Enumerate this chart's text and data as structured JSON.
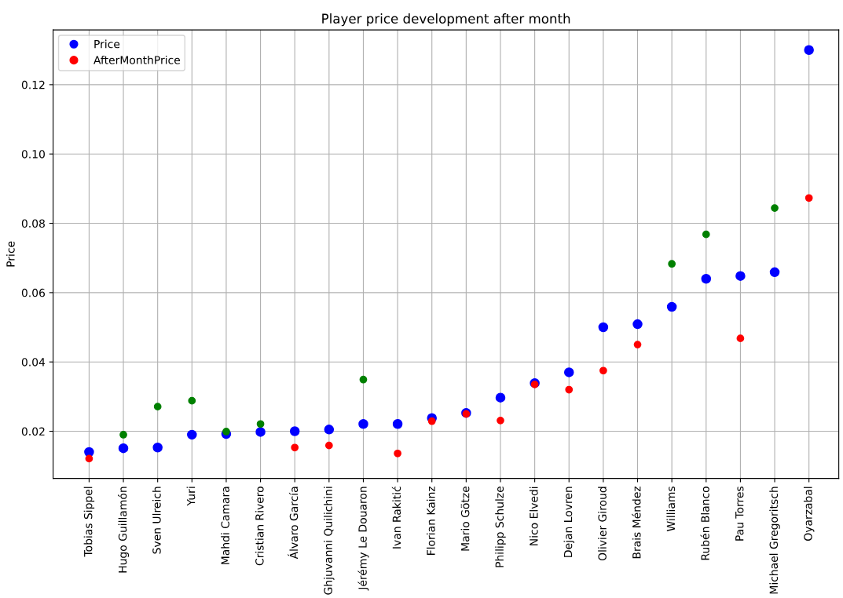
{
  "chart_data": {
    "type": "scatter",
    "title": "Player price development after month",
    "ylabel": "Price",
    "categories": [
      "Tobias Sippel",
      "Hugo Guillamón",
      "Sven Ulreich",
      "Yuri",
      "Mahdi Camara",
      "Cristian Rivero",
      "Álvaro García",
      "Ghjuvanni Quilichini",
      "Jérémy Le Douaron",
      "Ivan Rakitić",
      "Florian Kainz",
      "Mario Götze",
      "Philipp Schulze",
      "Nico Elvedi",
      "Dejan Lovren",
      "Olivier Giroud",
      "Brais Méndez",
      "Williams",
      "Rubén Blanco",
      "Pau Torres",
      "Michael Gregoritsch",
      "Oyarzabal"
    ],
    "series": [
      {
        "name": "Price",
        "color": "#0000ff",
        "values": [
          0.014,
          0.0151,
          0.0153,
          0.019,
          0.0192,
          0.0198,
          0.02,
          0.0205,
          0.0221,
          0.0221,
          0.0238,
          0.0253,
          0.0297,
          0.0339,
          0.037,
          0.05,
          0.0509,
          0.0559,
          0.064,
          0.0648,
          0.0659,
          0.13
        ]
      },
      {
        "name": "AfterMonthPrice",
        "color": "#ff0000",
        "colors": [
          "#ff0000",
          "#008000",
          "#008000",
          "#008000",
          "#008000",
          "#008000",
          "#ff0000",
          "#ff0000",
          "#008000",
          "#ff0000",
          "#ff0000",
          "#ff0000",
          "#ff0000",
          "#ff0000",
          "#ff0000",
          "#ff0000",
          "#ff0000",
          "#008000",
          "#008000",
          "#ff0000",
          "#008000",
          "#ff0000"
        ],
        "values": [
          0.0121,
          0.019,
          0.0271,
          0.0288,
          0.0199,
          0.0221,
          0.0153,
          0.0159,
          0.0349,
          0.0136,
          0.0229,
          0.025,
          0.0231,
          0.0335,
          0.032,
          0.0375,
          0.045,
          0.0683,
          0.0768,
          0.0468,
          0.0844,
          0.0873
        ]
      }
    ],
    "ylim": [
      0.0064,
      0.1358
    ],
    "yticks": [
      {
        "value": 0.02,
        "label": "0.02"
      },
      {
        "value": 0.04,
        "label": "0.04"
      },
      {
        "value": 0.06,
        "label": "0.06"
      },
      {
        "value": 0.08,
        "label": "0.08"
      },
      {
        "value": 0.1,
        "label": "0.10"
      },
      {
        "value": 0.12,
        "label": "0.12"
      }
    ],
    "grid": true,
    "legend": "top left",
    "marker": "circle"
  }
}
